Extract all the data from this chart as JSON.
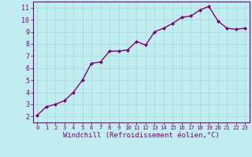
{
  "x": [
    0,
    1,
    2,
    3,
    4,
    5,
    6,
    7,
    8,
    9,
    10,
    11,
    12,
    13,
    14,
    15,
    16,
    17,
    18,
    19,
    20,
    21,
    22,
    23
  ],
  "y": [
    2.1,
    2.8,
    3.0,
    3.3,
    4.0,
    5.0,
    6.4,
    6.5,
    7.4,
    7.4,
    7.5,
    8.2,
    7.9,
    9.0,
    9.3,
    9.7,
    10.2,
    10.3,
    10.8,
    11.1,
    9.9,
    9.3,
    9.2,
    9.3
  ],
  "line_color": "#800080",
  "marker": "D",
  "marker_size": 2,
  "bg_color": "#c0eef0",
  "grid_color": "#b0d8dc",
  "xlabel": "Windchill (Refroidissement éolien,°C)",
  "xlim": [
    -0.5,
    23.5
  ],
  "ylim": [
    1.5,
    11.5
  ],
  "yticks": [
    2,
    3,
    4,
    5,
    6,
    7,
    8,
    9,
    10,
    11
  ],
  "xticks": [
    0,
    1,
    2,
    3,
    4,
    5,
    6,
    7,
    8,
    9,
    10,
    11,
    12,
    13,
    14,
    15,
    16,
    17,
    18,
    19,
    20,
    21,
    22,
    23
  ],
  "line_width": 1.0,
  "xlabel_color": "#800080",
  "axis_color": "#800080",
  "tick_color": "#800080",
  "spine_color": "#800080",
  "xlabel_fontsize": 6.5,
  "xtick_fontsize": 5.2,
  "ytick_fontsize": 6.0
}
